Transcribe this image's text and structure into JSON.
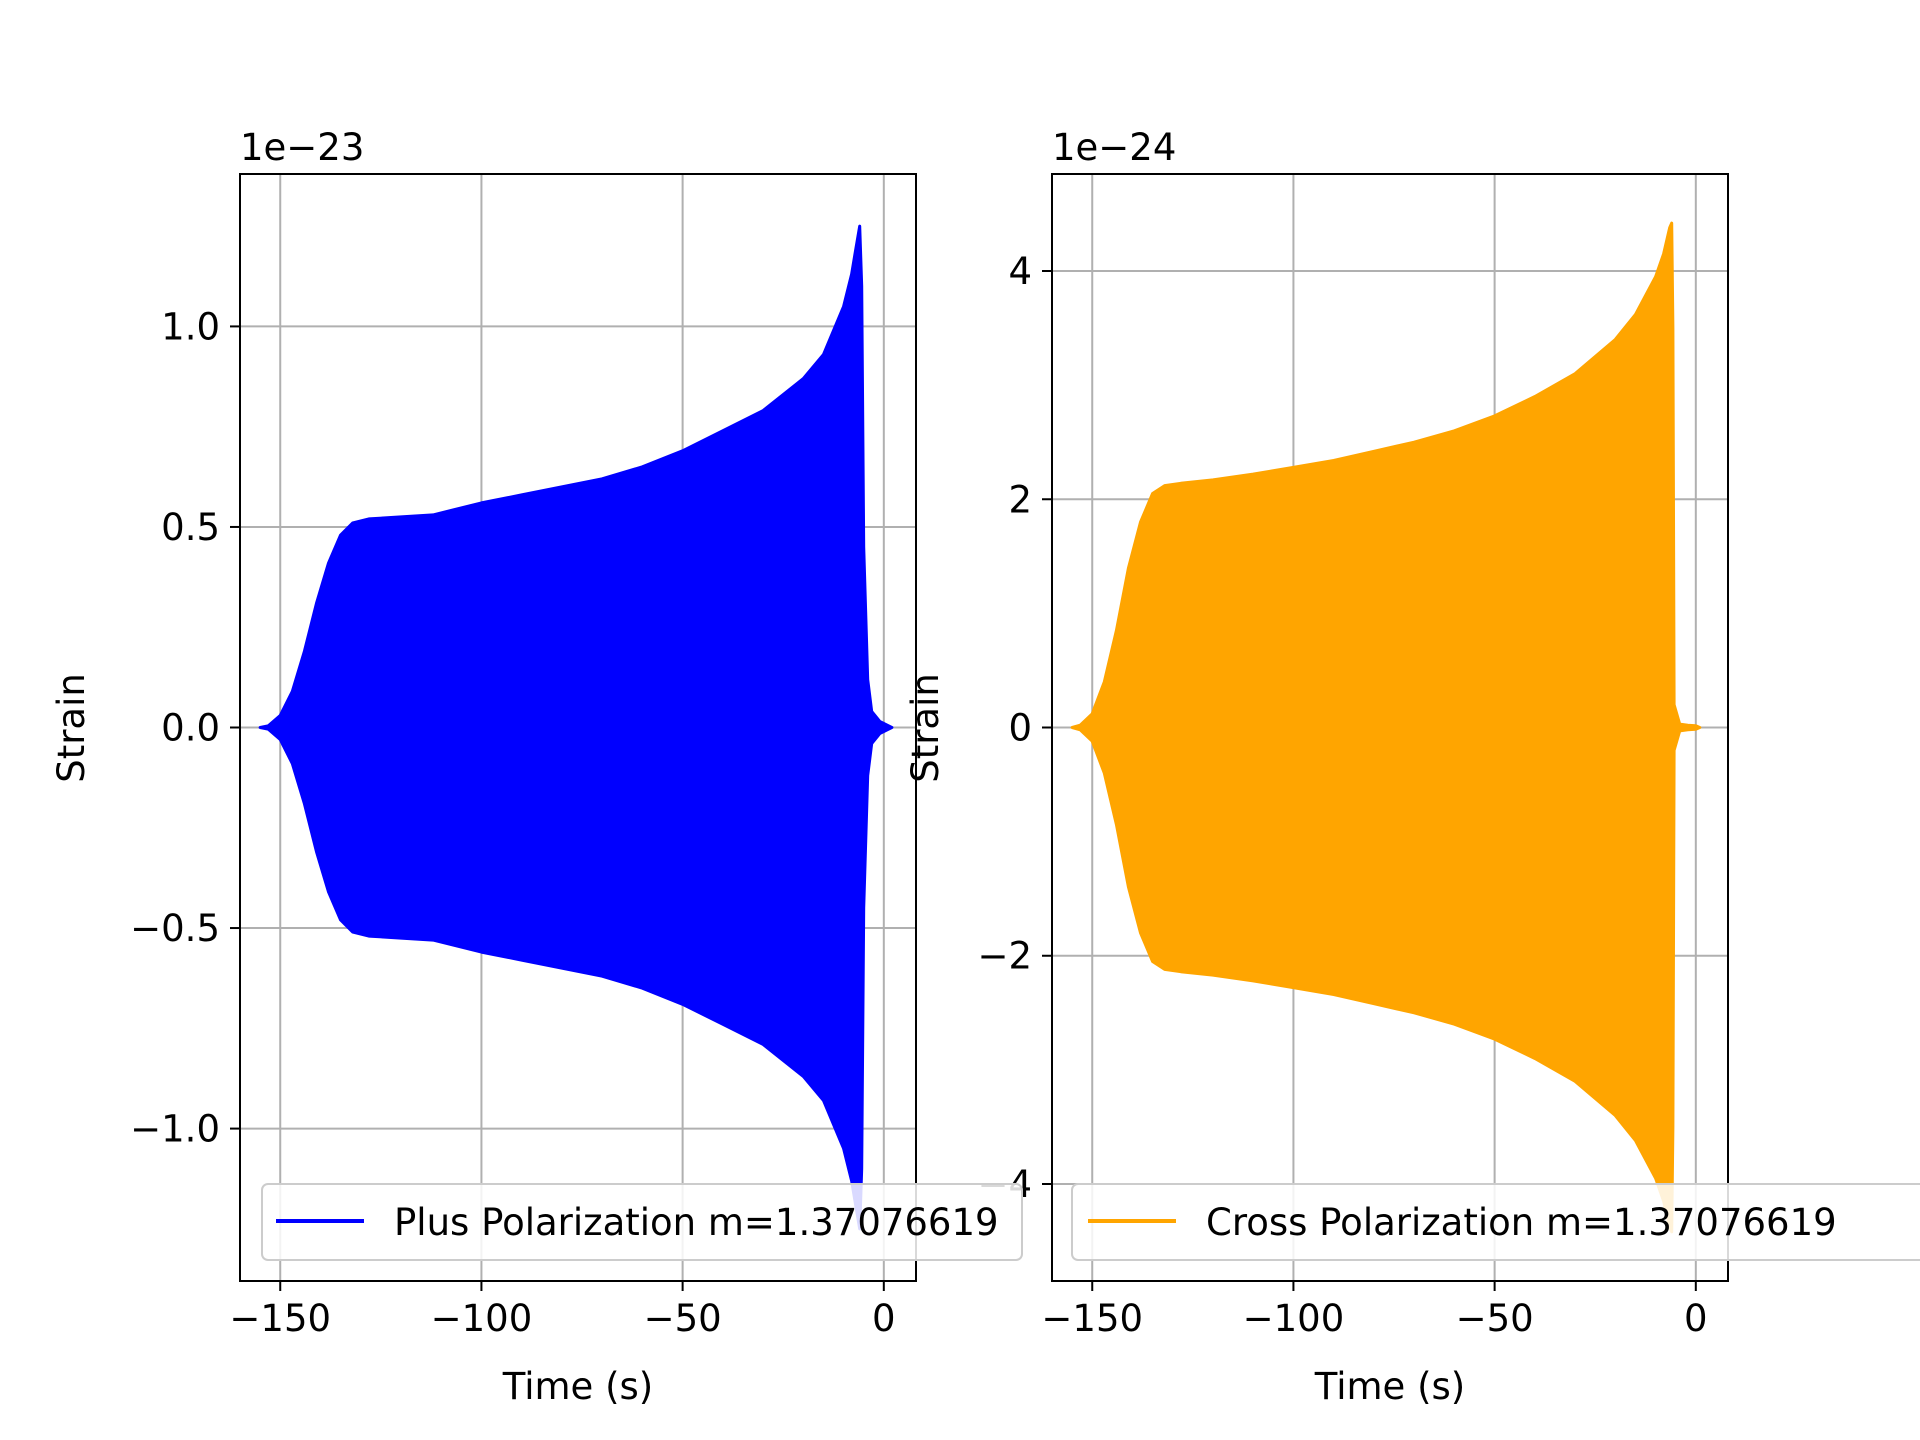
{
  "chart_data": [
    {
      "type": "line",
      "xlabel": "Time (s)",
      "ylabel": "Strain",
      "offset_text": "1e−23",
      "scale_exponent": -23,
      "xlim": [
        -160,
        8
      ],
      "ylim": [
        -1.38,
        1.38
      ],
      "xticks": [
        -150,
        -100,
        -50,
        0
      ],
      "xtick_labels": [
        "−150",
        "−100",
        "−50",
        "0"
      ],
      "yticks": [
        -1.0,
        -0.5,
        0.0,
        0.5,
        1.0
      ],
      "ytick_labels": [
        "−1.0",
        "−0.5",
        "0.0",
        "0.5",
        "1.0"
      ],
      "grid": true,
      "legend_position": "lower center",
      "color": "#0000ff",
      "series": [
        {
          "name": "Plus Polarization m=1.37076619",
          "envelope": {
            "t": [
              -155,
              -153,
              -150,
              -147,
              -144,
              -141,
              -138,
              -135,
              -132,
              -128,
              -120,
              -112,
              -100,
              -90,
              -80,
              -70,
              -60,
              -50,
              -40,
              -30,
              -20,
              -15,
              -10,
              -8,
              -7,
              -6,
              -5.5,
              -5,
              -4,
              -3,
              -1,
              2
            ],
            "max": [
              0,
              0.004,
              0.03,
              0.09,
              0.19,
              0.31,
              0.41,
              0.48,
              0.51,
              0.52,
              0.525,
              0.53,
              0.56,
              0.58,
              0.6,
              0.62,
              0.65,
              0.69,
              0.74,
              0.79,
              0.87,
              0.93,
              1.05,
              1.13,
              1.19,
              1.25,
              1.1,
              0.45,
              0.12,
              0.04,
              0.015,
              0
            ],
            "min": [
              0,
              -0.004,
              -0.03,
              -0.09,
              -0.19,
              -0.31,
              -0.41,
              -0.48,
              -0.51,
              -0.52,
              -0.525,
              -0.53,
              -0.56,
              -0.58,
              -0.6,
              -0.62,
              -0.65,
              -0.69,
              -0.74,
              -0.79,
              -0.87,
              -0.93,
              -1.05,
              -1.13,
              -1.19,
              -1.25,
              -1.1,
              -0.45,
              -0.12,
              -0.04,
              -0.015,
              0
            ]
          }
        }
      ]
    },
    {
      "type": "line",
      "xlabel": "Time (s)",
      "ylabel": "Strain",
      "offset_text": "1e−24",
      "scale_exponent": -24,
      "xlim": [
        -160,
        8
      ],
      "ylim": [
        -4.85,
        4.85
      ],
      "xticks": [
        -150,
        -100,
        -50,
        0
      ],
      "xtick_labels": [
        "−150",
        "−100",
        "−50",
        "0"
      ],
      "yticks": [
        -4,
        -2,
        0,
        2,
        4
      ],
      "ytick_labels": [
        "−4",
        "−2",
        "0",
        "2",
        "4"
      ],
      "grid": true,
      "legend_position": "lower center",
      "color": "#ffa500",
      "series": [
        {
          "name": "Cross Polarization m=1.37076619",
          "envelope": {
            "t": [
              -155,
              -153,
              -150,
              -147,
              -144,
              -141,
              -138,
              -135,
              -132,
              -128,
              -120,
              -110,
              -100,
              -90,
              -80,
              -70,
              -60,
              -50,
              -40,
              -30,
              -20,
              -15,
              -10,
              -8,
              -6.5,
              -6,
              -5.7,
              -5.4,
              -4,
              -2,
              0,
              1
            ],
            "max": [
              0,
              0.02,
              0.12,
              0.4,
              0.85,
              1.4,
              1.8,
              2.05,
              2.12,
              2.14,
              2.17,
              2.22,
              2.28,
              2.34,
              2.42,
              2.5,
              2.6,
              2.73,
              2.9,
              3.1,
              3.4,
              3.62,
              3.95,
              4.15,
              4.38,
              4.42,
              3.5,
              0.2,
              0.03,
              0.02,
              0.015,
              0
            ],
            "min": [
              0,
              -0.02,
              -0.12,
              -0.4,
              -0.85,
              -1.4,
              -1.8,
              -2.05,
              -2.12,
              -2.14,
              -2.17,
              -2.22,
              -2.28,
              -2.34,
              -2.42,
              -2.5,
              -2.6,
              -2.73,
              -2.9,
              -3.1,
              -3.4,
              -3.62,
              -3.95,
              -4.15,
              -4.38,
              -4.42,
              -3.5,
              -0.2,
              -0.03,
              -0.02,
              -0.015,
              0
            ]
          }
        }
      ]
    }
  ]
}
